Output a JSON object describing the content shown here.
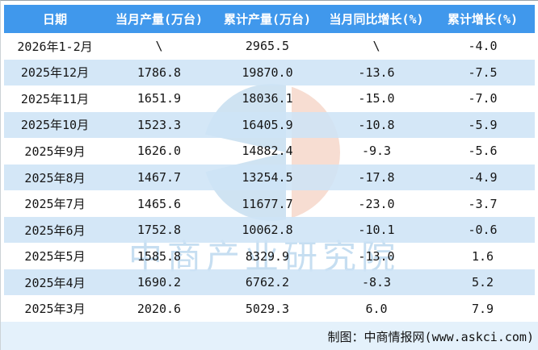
{
  "chart_data": {
    "type": "table",
    "title": "",
    "columns": [
      "日期",
      "当月产量(万台)",
      "累计产量(万台)",
      "当月同比增长(%)",
      "累计增长(%)"
    ],
    "rows": [
      [
        "2026年1-2月",
        "\\",
        "2965.5",
        "\\",
        "-4.0"
      ],
      [
        "2025年12月",
        "1786.8",
        "19870.0",
        "-13.6",
        "-7.5"
      ],
      [
        "2025年11月",
        "1651.9",
        "18036.1",
        "-15.0",
        "-7.0"
      ],
      [
        "2025年10月",
        "1523.3",
        "16405.9",
        "-10.8",
        "-5.9"
      ],
      [
        "2025年9月",
        "1626.0",
        "14882.4",
        "-9.3",
        "-5.6"
      ],
      [
        "2025年8月",
        "1467.7",
        "13254.5",
        "-17.8",
        "-4.9"
      ],
      [
        "2025年7月",
        "1465.6",
        "11677.7",
        "-23.0",
        "-3.7"
      ],
      [
        "2025年6月",
        "1752.8",
        "10062.8",
        "-10.1",
        "-0.6"
      ],
      [
        "2025年5月",
        "1585.8",
        "8329.9",
        "-13.0",
        "1.6"
      ],
      [
        "2025年4月",
        "1690.2",
        "6762.2",
        "-8.3",
        "5.2"
      ],
      [
        "2025年3月",
        "2020.6",
        "5029.3",
        "6.0",
        "7.9"
      ]
    ],
    "categories": [
      "2026年1-2月",
      "2025年12月",
      "2025年11月",
      "2025年10月",
      "2025年9月",
      "2025年8月",
      "2025年7月",
      "2025年6月",
      "2025年5月",
      "2025年4月",
      "2025年3月"
    ],
    "series": [
      {
        "name": "当月产量(万台)",
        "values": [
          null,
          1786.8,
          1651.9,
          1523.3,
          1626.0,
          1467.7,
          1465.6,
          1752.8,
          1585.8,
          1690.2,
          2020.6
        ]
      },
      {
        "name": "累计产量(万台)",
        "values": [
          2965.5,
          19870.0,
          18036.1,
          16405.9,
          14882.4,
          13254.5,
          11677.7,
          10062.8,
          8329.9,
          6762.2,
          5029.3
        ]
      },
      {
        "name": "当月同比增长(%)",
        "values": [
          null,
          -13.6,
          -15.0,
          -10.8,
          -9.3,
          -17.8,
          -23.0,
          -10.1,
          -13.0,
          -8.3,
          6.0
        ]
      },
      {
        "name": "累计增长(%)",
        "values": [
          -4.0,
          -7.5,
          -7.0,
          -5.9,
          -5.6,
          -4.9,
          -3.7,
          -0.6,
          1.6,
          5.2,
          7.9
        ]
      }
    ]
  },
  "watermark": {
    "brand_text": "中商产业研究院",
    "logo": "askci-pie-logo"
  },
  "footer": {
    "credit": "制图：中商情报网(www.askci.com)"
  },
  "colors": {
    "header_bg": "#4098ec",
    "row_alt": "#d8e9f7",
    "footer_bg": "#e4f1fb",
    "wm_blue": "#cfe3f2",
    "wm_peach": "#f7ddd2",
    "wm_text": "#c6def1",
    "text": "#151515"
  }
}
